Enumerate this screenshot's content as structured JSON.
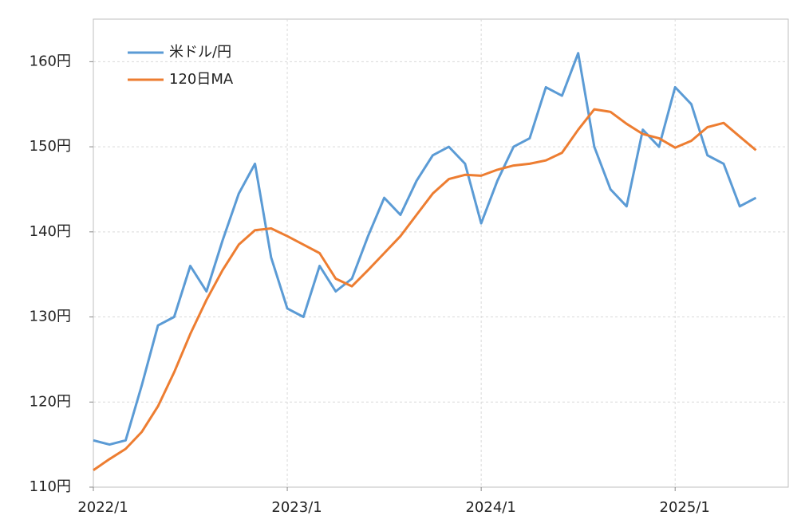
{
  "chart_data": {
    "type": "line",
    "x": [
      "2022/1",
      "2022/2",
      "2022/3",
      "2022/4",
      "2022/5",
      "2022/6",
      "2022/7",
      "2022/8",
      "2022/9",
      "2022/10",
      "2022/11",
      "2022/12",
      "2023/1",
      "2023/2",
      "2023/3",
      "2023/4",
      "2023/5",
      "2023/6",
      "2023/7",
      "2023/8",
      "2023/9",
      "2023/10",
      "2023/11",
      "2023/12",
      "2024/1",
      "2024/2",
      "2024/3",
      "2024/4",
      "2024/5",
      "2024/6",
      "2024/7",
      "2024/8",
      "2024/9",
      "2024/10",
      "2024/11",
      "2024/12",
      "2025/1",
      "2025/2",
      "2025/3",
      "2025/4",
      "2025/5",
      "2025/6"
    ],
    "series": [
      {
        "name": "米ドル/円",
        "color": "#5b9bd5",
        "values": [
          115.5,
          115,
          115.5,
          122,
          129,
          130,
          136,
          133,
          139,
          144.5,
          148,
          137,
          131,
          130,
          136,
          133,
          134.5,
          139.5,
          144,
          142,
          146,
          149,
          150,
          148,
          141,
          146,
          150,
          151,
          157,
          156,
          161,
          150,
          145,
          143,
          152,
          150,
          157,
          155,
          149,
          148,
          143,
          144
        ]
      },
      {
        "name": "120日MA",
        "color": "#ed7d31",
        "values": [
          112,
          113.3,
          114.5,
          116.5,
          119.5,
          123.5,
          128,
          132,
          135.5,
          138.5,
          140.2,
          140.4,
          139.5,
          138.5,
          137.5,
          134.5,
          133.6,
          135.5,
          137.5,
          139.5,
          142,
          144.5,
          146.2,
          146.7,
          146.6,
          147.3,
          147.8,
          148,
          148.4,
          149.3,
          152,
          154.4,
          154.1,
          152.7,
          151.5,
          151,
          149.9,
          150.7,
          152.3,
          152.8,
          151.2,
          149.6
        ]
      }
    ],
    "xlim": [
      "2022/1",
      "2025/8"
    ],
    "xticks": [
      "2022/1",
      "2023/1",
      "2024/1",
      "2025/1"
    ],
    "ylim": [
      110,
      165
    ],
    "yticks": [
      {
        "value": 110,
        "label": "110円"
      },
      {
        "value": 120,
        "label": "120円"
      },
      {
        "value": 130,
        "label": "130円"
      },
      {
        "value": 140,
        "label": "140円"
      },
      {
        "value": 150,
        "label": "150円"
      },
      {
        "value": 160,
        "label": "160円"
      }
    ],
    "grid": true,
    "legend": "upper left"
  }
}
